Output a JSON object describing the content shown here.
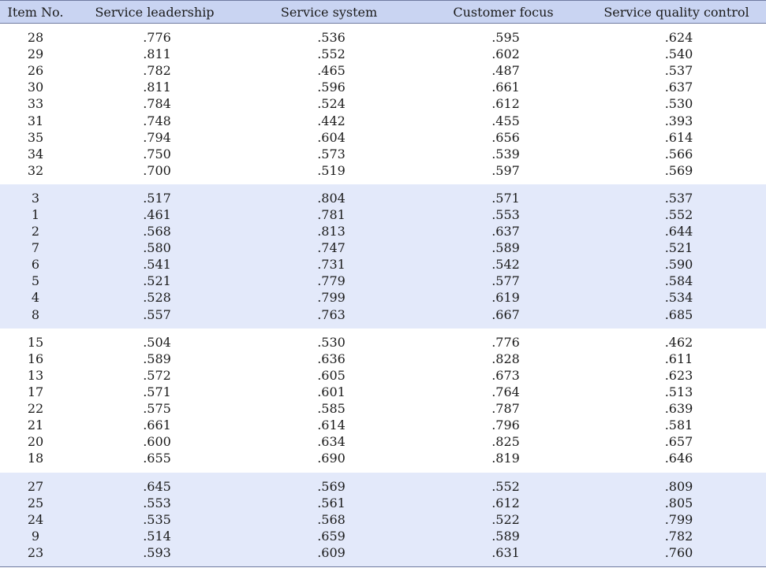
{
  "columns": [
    "Item No.",
    "Service leadership",
    "Service system",
    "Customer focus",
    "Service quality control"
  ],
  "groups": [
    {
      "shaded": false,
      "rows": [
        [
          "28",
          ".776",
          ".536",
          ".595",
          ".624"
        ],
        [
          "29",
          ".811",
          ".552",
          ".602",
          ".540"
        ],
        [
          "26",
          ".782",
          ".465",
          ".487",
          ".537"
        ],
        [
          "30",
          ".811",
          ".596",
          ".661",
          ".637"
        ],
        [
          "33",
          ".784",
          ".524",
          ".612",
          ".530"
        ],
        [
          "31",
          ".748",
          ".442",
          ".455",
          ".393"
        ],
        [
          "35",
          ".794",
          ".604",
          ".656",
          ".614"
        ],
        [
          "34",
          ".750",
          ".573",
          ".539",
          ".566"
        ],
        [
          "32",
          ".700",
          ".519",
          ".597",
          ".569"
        ]
      ]
    },
    {
      "shaded": true,
      "rows": [
        [
          "3",
          ".517",
          ".804",
          ".571",
          ".537"
        ],
        [
          "1",
          ".461",
          ".781",
          ".553",
          ".552"
        ],
        [
          "2",
          ".568",
          ".813",
          ".637",
          ".644"
        ],
        [
          "7",
          ".580",
          ".747",
          ".589",
          ".521"
        ],
        [
          "6",
          ".541",
          ".731",
          ".542",
          ".590"
        ],
        [
          "5",
          ".521",
          ".779",
          ".577",
          ".584"
        ],
        [
          "4",
          ".528",
          ".799",
          ".619",
          ".534"
        ],
        [
          "8",
          ".557",
          ".763",
          ".667",
          ".685"
        ]
      ]
    },
    {
      "shaded": false,
      "rows": [
        [
          "15",
          ".504",
          ".530",
          ".776",
          ".462"
        ],
        [
          "16",
          ".589",
          ".636",
          ".828",
          ".611"
        ],
        [
          "13",
          ".572",
          ".605",
          ".673",
          ".623"
        ],
        [
          "17",
          ".571",
          ".601",
          ".764",
          ".513"
        ],
        [
          "22",
          ".575",
          ".585",
          ".787",
          ".639"
        ],
        [
          "21",
          ".661",
          ".614",
          ".796",
          ".581"
        ],
        [
          "20",
          ".600",
          ".634",
          ".825",
          ".657"
        ],
        [
          "18",
          ".655",
          ".690",
          ".819",
          ".646"
        ]
      ]
    },
    {
      "shaded": true,
      "rows": [
        [
          "27",
          ".645",
          ".569",
          ".552",
          ".809"
        ],
        [
          "25",
          ".553",
          ".561",
          ".612",
          ".805"
        ],
        [
          "24",
          ".535",
          ".568",
          ".522",
          ".799"
        ],
        [
          "9",
          ".514",
          ".659",
          ".589",
          ".782"
        ],
        [
          "23",
          ".593",
          ".609",
          ".631",
          ".760"
        ]
      ]
    }
  ]
}
